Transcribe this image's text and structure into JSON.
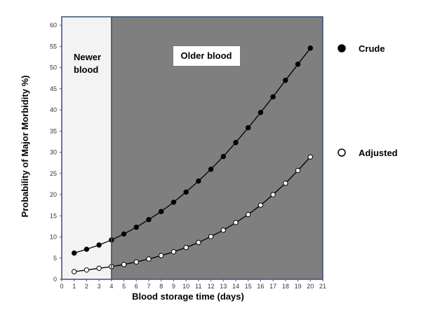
{
  "chart_data": {
    "type": "scatter",
    "xlabel": "Blood storage time (days)",
    "ylabel": "Probability of Major Morbidity  %)",
    "xlim": [
      0,
      21
    ],
    "ylim": [
      0,
      62
    ],
    "x_ticks": [
      "0",
      "1",
      "2",
      "3",
      "4",
      "5",
      "6",
      "7",
      "8",
      "9",
      "10",
      "11",
      "12",
      "13",
      "14",
      "15",
      "16",
      "17",
      "18",
      "19",
      "20",
      "21"
    ],
    "y_ticks": [
      "0",
      "5",
      "10",
      "15",
      "20",
      "25",
      "30",
      "35",
      "40",
      "45",
      "50",
      "55",
      "60"
    ],
    "grid": false,
    "legend_position": "right",
    "regions": [
      {
        "label_lines": [
          "Newer",
          "blood"
        ],
        "x_range": [
          0,
          4
        ],
        "color": "#f3f3f4"
      },
      {
        "label_lines": [
          "Older blood"
        ],
        "x_range": [
          4,
          21
        ],
        "color": "#7f7f7f",
        "label_box_color": "#ffffff"
      }
    ],
    "x": [
      1,
      2,
      3,
      4,
      5,
      6,
      7,
      8,
      9,
      10,
      11,
      12,
      13,
      14,
      15,
      16,
      17,
      18,
      19,
      20
    ],
    "series": [
      {
        "name": "Crude",
        "marker": "filled-circle",
        "color": "#000000",
        "values": [
          6.2,
          7.1,
          8.1,
          9.3,
          10.7,
          12.3,
          14.1,
          16.0,
          18.2,
          20.6,
          23.2,
          26.0,
          29.0,
          32.3,
          35.8,
          39.4,
          43.1,
          47.0,
          50.8,
          54.6
        ]
      },
      {
        "name": "Adjusted",
        "marker": "open-circle",
        "color": "#000000",
        "values": [
          1.8,
          2.2,
          2.6,
          3.0,
          3.5,
          4.1,
          4.8,
          5.6,
          6.5,
          7.5,
          8.7,
          10.1,
          11.6,
          13.4,
          15.3,
          17.5,
          20.0,
          22.7,
          25.7,
          28.9
        ]
      }
    ]
  }
}
